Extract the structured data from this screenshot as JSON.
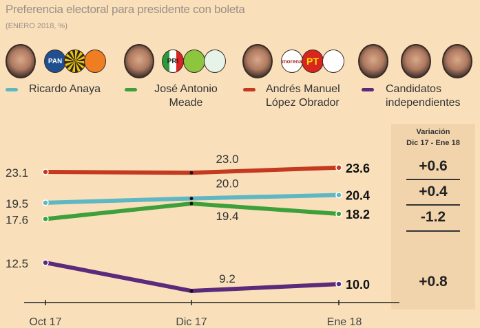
{
  "title": "Preferencia electoral para presidente con boleta",
  "subtitle": "(ENERO 2018, %)",
  "logos": {
    "pan": "PAN",
    "pri": "PRI",
    "morena": "morena",
    "pt": "PT"
  },
  "variation": {
    "header1": "Variación",
    "header2": "Dic 17 - Ene 18",
    "values": [
      "+0.6",
      "+0.4",
      "-1.2",
      "+0.8"
    ]
  },
  "chart_data": {
    "type": "line",
    "title": "Preferencia electoral para presidente con boleta",
    "subtitle": "(ENERO 2018, %)",
    "categories": [
      "Oct 17",
      "Dic 17",
      "Ene 18"
    ],
    "legend_placement": "top",
    "grid": false,
    "series": [
      {
        "name": "Andrés Manuel López Obrador",
        "color": "#c4391f",
        "values": [
          23.1,
          23.0,
          23.6
        ],
        "labels": [
          "23.1",
          "23.0",
          "23.6"
        ]
      },
      {
        "name": "Ricardo Anaya",
        "color": "#5fb7c4",
        "values": [
          19.5,
          20.0,
          20.4
        ],
        "labels": [
          "19.5",
          "20.0",
          "20.4"
        ]
      },
      {
        "name": "José Antonio Meade",
        "color": "#3ea03a",
        "values": [
          17.6,
          19.4,
          18.2
        ],
        "labels": [
          "17.6",
          "19.4",
          "18.2"
        ]
      },
      {
        "name": "Candidatos independientes",
        "color": "#5b2a7a",
        "values": [
          12.5,
          9.2,
          10.0
        ],
        "labels": [
          "12.5",
          "9.2",
          "10.0"
        ]
      }
    ]
  }
}
